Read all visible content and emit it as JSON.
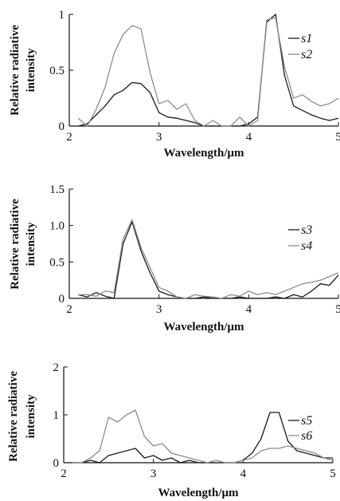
{
  "chart_data": [
    {
      "type": "line",
      "xlabel": "Wavelength/μm",
      "ylabel": "Relative radiative intensity",
      "xlim": [
        2,
        5
      ],
      "ylim": [
        0,
        1
      ],
      "xticks": [
        "2",
        "3",
        "4",
        "5"
      ],
      "yticks": [
        "0",
        "0.5",
        "1"
      ],
      "legend_position": "top-right",
      "series": [
        {
          "name": "s1",
          "color": "#1a1a1a",
          "x": [
            2.1,
            2.2,
            2.3,
            2.4,
            2.5,
            2.6,
            2.7,
            2.8,
            2.9,
            3.0,
            3.1,
            3.2,
            3.3,
            3.4,
            3.5,
            3.6,
            3.7,
            3.8,
            3.9,
            4.0,
            4.1,
            4.2,
            4.3,
            4.4,
            4.5,
            4.6,
            4.7,
            4.8,
            4.9,
            5.0
          ],
          "y": [
            0.0,
            0.02,
            0.1,
            0.18,
            0.28,
            0.32,
            0.39,
            0.38,
            0.3,
            0.12,
            0.08,
            0.07,
            0.05,
            0.03,
            0.0,
            0.0,
            0.0,
            0.0,
            0.0,
            0.02,
            0.08,
            0.93,
            1.0,
            0.45,
            0.18,
            0.14,
            0.1,
            0.07,
            0.05,
            0.07
          ]
        },
        {
          "name": "s2",
          "color": "#8c8c8c",
          "x": [
            2.1,
            2.2,
            2.3,
            2.4,
            2.5,
            2.6,
            2.7,
            2.8,
            2.9,
            3.0,
            3.1,
            3.2,
            3.3,
            3.4,
            3.5,
            3.6,
            3.7,
            3.8,
            3.9,
            4.0,
            4.1,
            4.2,
            4.3,
            4.4,
            4.5,
            4.6,
            4.7,
            4.8,
            4.9,
            5.0
          ],
          "y": [
            0.07,
            0.0,
            0.15,
            0.35,
            0.65,
            0.82,
            0.9,
            0.87,
            0.48,
            0.2,
            0.23,
            0.15,
            0.2,
            0.05,
            0.0,
            0.05,
            0.0,
            0.0,
            0.08,
            0.0,
            0.05,
            0.95,
            0.97,
            0.53,
            0.25,
            0.28,
            0.22,
            0.18,
            0.2,
            0.25
          ]
        }
      ]
    },
    {
      "type": "line",
      "xlabel": "Wavelength/μm",
      "ylabel": "Relative radiative intensity",
      "xlim": [
        2,
        5
      ],
      "ylim": [
        0,
        1.5
      ],
      "xticks": [
        "2",
        "3",
        "4",
        "5"
      ],
      "yticks": [
        "0",
        "0.5",
        "1.0",
        "1.5"
      ],
      "legend_position": "right",
      "series": [
        {
          "name": "s3",
          "color": "#1a1a1a",
          "x": [
            2.1,
            2.2,
            2.3,
            2.4,
            2.5,
            2.6,
            2.7,
            2.8,
            2.9,
            3.0,
            3.1,
            3.2,
            3.3,
            3.4,
            3.5,
            3.6,
            3.7,
            3.8,
            3.9,
            4.0,
            4.1,
            4.2,
            4.3,
            4.4,
            4.5,
            4.6,
            4.7,
            4.8,
            4.9,
            5.0
          ],
          "y": [
            0.05,
            0.02,
            0.08,
            0.03,
            0.0,
            0.75,
            1.05,
            0.65,
            0.35,
            0.1,
            0.05,
            0.02,
            0.0,
            0.0,
            0.02,
            0.0,
            0.0,
            0.0,
            0.02,
            0.0,
            0.0,
            0.0,
            0.02,
            0.0,
            0.05,
            0.02,
            0.1,
            0.2,
            0.18,
            0.32
          ]
        },
        {
          "name": "s4",
          "color": "#8c8c8c",
          "x": [
            2.1,
            2.2,
            2.3,
            2.4,
            2.5,
            2.6,
            2.7,
            2.8,
            2.9,
            3.0,
            3.1,
            3.2,
            3.3,
            3.4,
            3.5,
            3.6,
            3.7,
            3.8,
            3.9,
            4.0,
            4.1,
            4.2,
            4.3,
            4.4,
            4.5,
            4.6,
            4.7,
            4.8,
            4.9,
            5.0
          ],
          "y": [
            0.05,
            0.05,
            0.03,
            0.1,
            0.08,
            0.82,
            1.08,
            0.7,
            0.42,
            0.15,
            0.1,
            0.02,
            0.0,
            0.05,
            0.03,
            0.02,
            0.0,
            0.05,
            0.03,
            0.1,
            0.05,
            0.08,
            0.05,
            0.1,
            0.15,
            0.2,
            0.22,
            0.25,
            0.3,
            0.35
          ]
        }
      ]
    },
    {
      "type": "line",
      "xlabel": "Wavelength/μm",
      "ylabel": "Relative radiative intensity",
      "xlim": [
        2,
        5
      ],
      "ylim": [
        0,
        2
      ],
      "xticks": [
        "2",
        "3",
        "4",
        "5"
      ],
      "yticks": [
        "0",
        "1",
        "2"
      ],
      "legend_position": "top-right",
      "series": [
        {
          "name": "s5",
          "color": "#1a1a1a",
          "x": [
            2.1,
            2.2,
            2.3,
            2.4,
            2.5,
            2.6,
            2.7,
            2.8,
            2.9,
            3.0,
            3.1,
            3.2,
            3.3,
            3.4,
            3.5,
            3.6,
            3.7,
            3.8,
            3.9,
            4.0,
            4.1,
            4.2,
            4.3,
            4.4,
            4.5,
            4.6,
            4.7,
            4.8,
            4.9,
            5.0
          ],
          "y": [
            0.0,
            0.0,
            0.05,
            0.0,
            0.15,
            0.2,
            0.25,
            0.3,
            0.1,
            0.15,
            0.05,
            0.1,
            0.0,
            0.05,
            0.0,
            0.0,
            0.0,
            0.0,
            0.0,
            0.05,
            0.2,
            0.5,
            1.05,
            1.05,
            0.45,
            0.25,
            0.2,
            0.15,
            0.1,
            0.1
          ]
        },
        {
          "name": "s6",
          "color": "#8c8c8c",
          "x": [
            2.1,
            2.2,
            2.3,
            2.4,
            2.5,
            2.6,
            2.7,
            2.8,
            2.9,
            3.0,
            3.1,
            3.2,
            3.3,
            3.4,
            3.5,
            3.6,
            3.7,
            3.8,
            3.9,
            4.0,
            4.1,
            4.2,
            4.3,
            4.4,
            4.5,
            4.6,
            4.7,
            4.8,
            4.9,
            5.0
          ],
          "y": [
            0.0,
            0.0,
            0.1,
            0.25,
            0.95,
            0.85,
            1.0,
            1.1,
            0.55,
            0.35,
            0.4,
            0.2,
            0.15,
            0.1,
            0.05,
            0.0,
            0.05,
            0.0,
            0.0,
            0.05,
            0.1,
            0.25,
            0.3,
            0.3,
            0.35,
            0.3,
            0.25,
            0.2,
            0.1,
            0.05
          ]
        }
      ]
    }
  ]
}
